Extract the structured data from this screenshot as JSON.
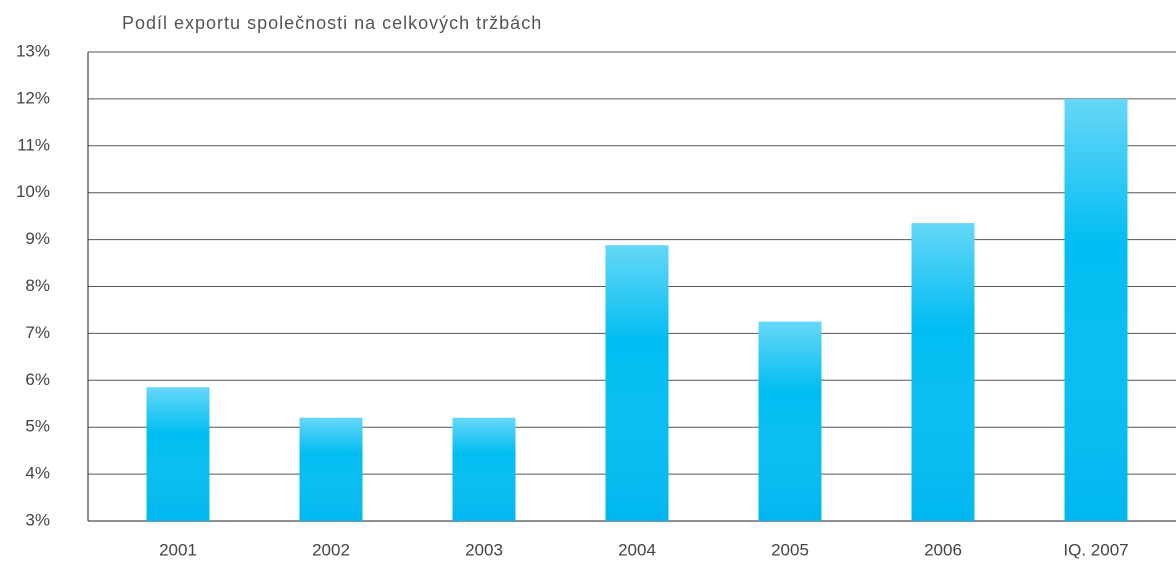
{
  "chart_data": {
    "type": "bar",
    "title": "Podíl exportu společnosti na celkových tržbách",
    "categories": [
      "2001",
      "2002",
      "2003",
      "2004",
      "2005",
      "2006",
      "IQ. 2007"
    ],
    "values": [
      5.85,
      5.2,
      5.2,
      8.88,
      7.25,
      9.35,
      12.0
    ],
    "color": "#00bdf2",
    "ylim": [
      3,
      13
    ],
    "yticks": [
      {
        "value": 3,
        "label": "3%"
      },
      {
        "value": 4,
        "label": "4%"
      },
      {
        "value": 5,
        "label": "5%"
      },
      {
        "value": 6,
        "label": "6%"
      },
      {
        "value": 7,
        "label": "7%"
      },
      {
        "value": 8,
        "label": "8%"
      },
      {
        "value": 9,
        "label": "9%"
      },
      {
        "value": 10,
        "label": "10%"
      },
      {
        "value": 11,
        "label": "11%"
      },
      {
        "value": 12,
        "label": "12%"
      },
      {
        "value": 13,
        "label": "13%"
      }
    ],
    "grid": true
  }
}
